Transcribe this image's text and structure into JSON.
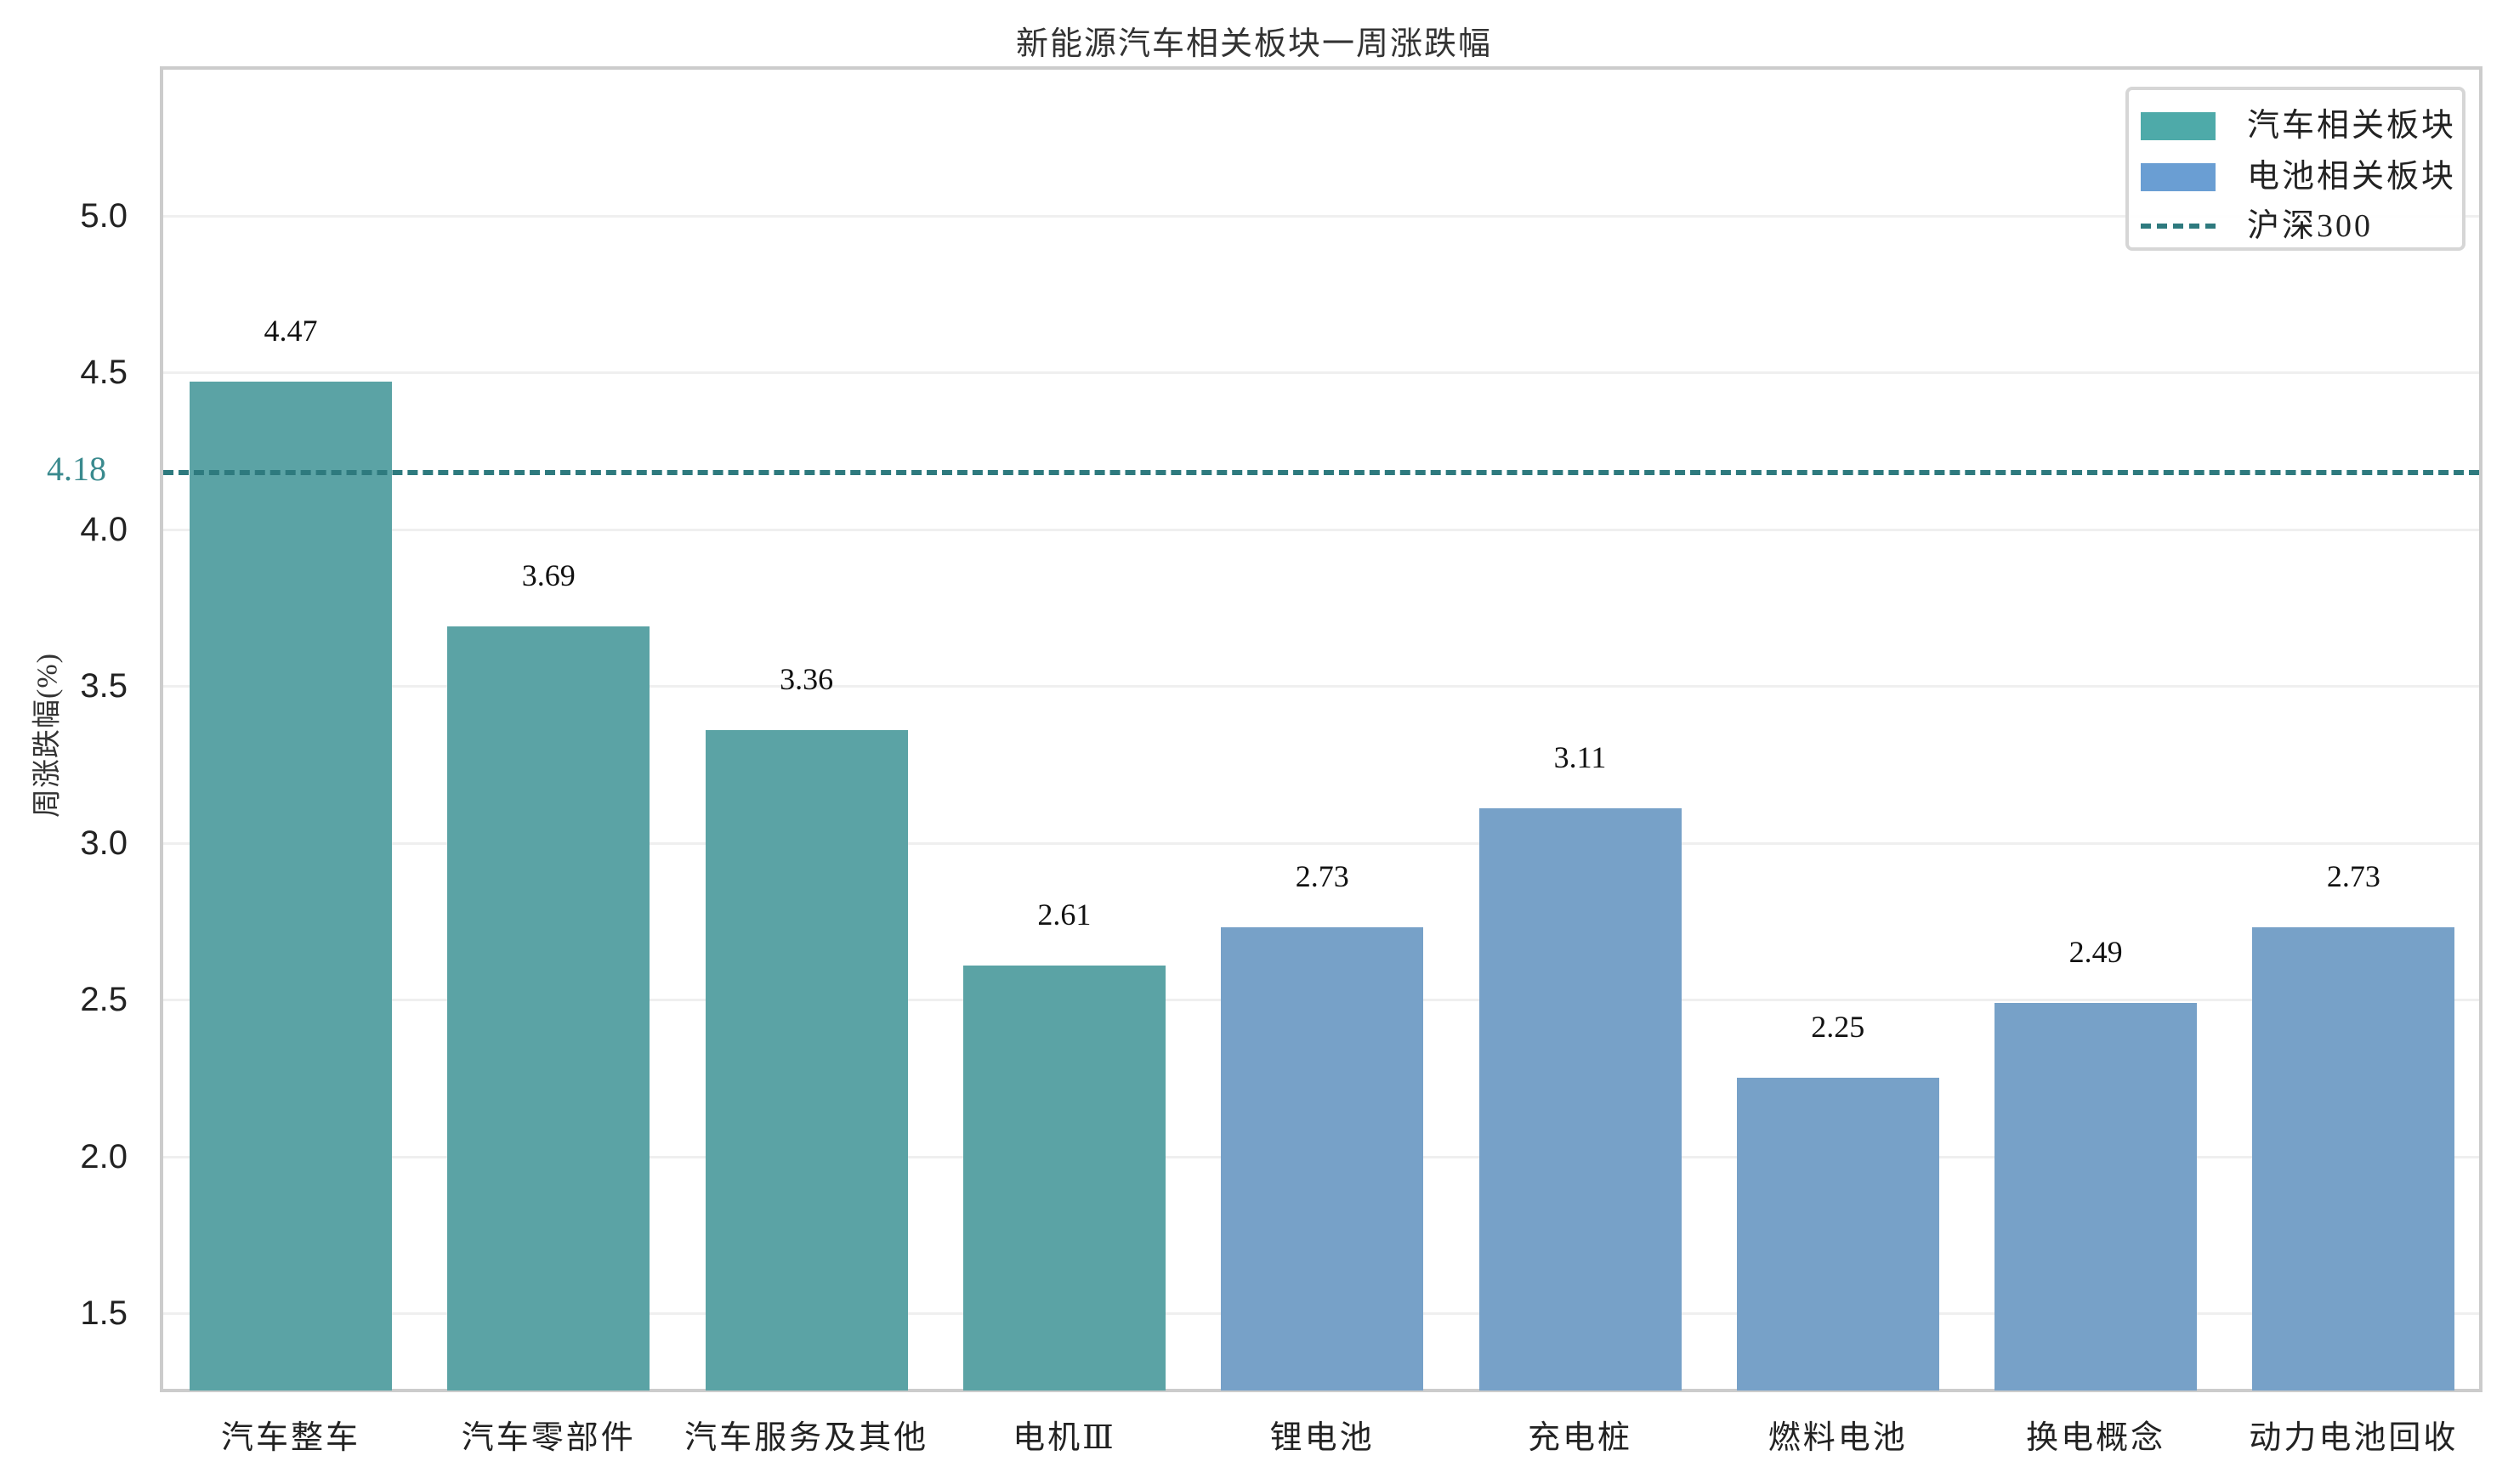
{
  "chart_data": {
    "type": "bar",
    "title": "新能源汽车相关板块一周涨跌幅",
    "xlabel": "",
    "ylabel": "周涨跌幅(%)",
    "ylim": [
      1.25,
      5.47
    ],
    "yticks": [
      "1.5",
      "2.0",
      "2.5",
      "3.0",
      "3.5",
      "4.0",
      "4.5",
      "5.0"
    ],
    "grid": true,
    "legend_position": "upper right",
    "categories": [
      "汽车整车",
      "汽车零部件",
      "汽车服务及其他",
      "电机Ⅲ",
      "锂电池",
      "充电桩",
      "燃料电池",
      "换电概念",
      "动力电池回收"
    ],
    "values": [
      4.47,
      3.69,
      3.36,
      2.61,
      2.73,
      3.11,
      2.25,
      2.49,
      2.73
    ],
    "value_labels": [
      "4.47",
      "3.69",
      "3.36",
      "2.61",
      "2.73",
      "3.11",
      "2.25",
      "2.49",
      "2.73"
    ],
    "groups": [
      "汽车相关板块",
      "汽车相关板块",
      "汽车相关板块",
      "汽车相关板块",
      "电池相关板块",
      "电池相关板块",
      "电池相关板块",
      "电池相关板块",
      "电池相关板块"
    ],
    "series": [
      {
        "name": "汽车相关板块",
        "categories": [
          "汽车整车",
          "汽车零部件",
          "汽车服务及其他",
          "电机Ⅲ"
        ],
        "values": [
          4.47,
          3.69,
          3.36,
          2.61
        ],
        "color": "#5ba3a5"
      },
      {
        "name": "电池相关板块",
        "categories": [
          "锂电池",
          "充电桩",
          "燃料电池",
          "换电概念",
          "动力电池回收"
        ],
        "values": [
          2.73,
          3.11,
          2.25,
          2.49,
          2.73
        ],
        "color": "#77a1c8"
      }
    ],
    "reference_line": {
      "name": "沪深300",
      "value": 4.18,
      "label": "4.18",
      "style": "dashed",
      "color": "#2e7a7e"
    }
  },
  "legend": {
    "items": [
      {
        "label": "汽车相关板块",
        "type": "patch",
        "color": "#4eaaa9"
      },
      {
        "label": "电池相关板块",
        "type": "patch",
        "color": "#6a9ed3"
      },
      {
        "label": "沪深300",
        "type": "dashed-line",
        "color": "#2e7a7e"
      }
    ]
  },
  "colors": {
    "car_bar": "#5ba3a5",
    "battery_bar": "#77a1c8",
    "benchmark_line": "#2e7a7e",
    "grid": "#efefef",
    "frame": "#cccccc"
  }
}
